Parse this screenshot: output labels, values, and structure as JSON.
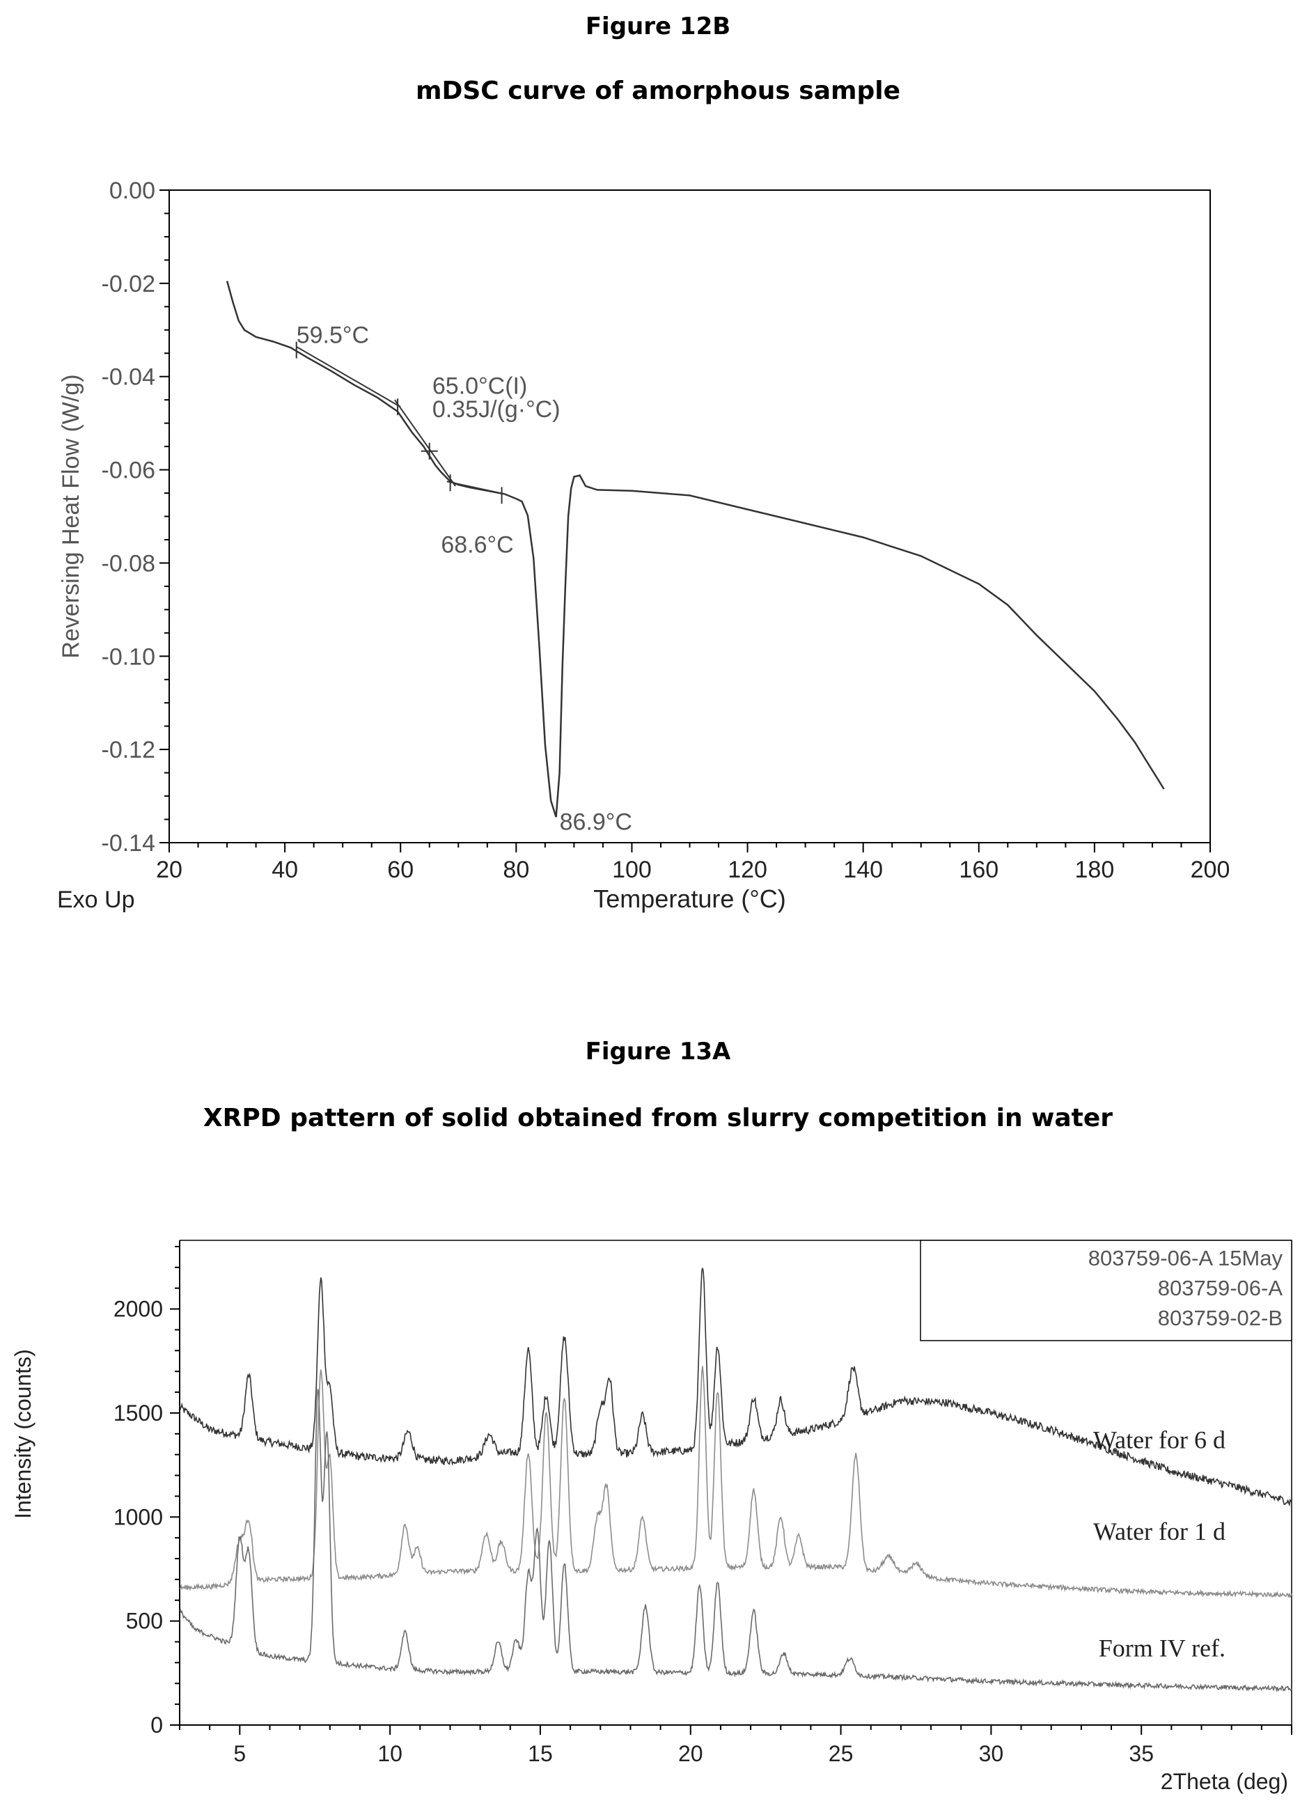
{
  "figures": [
    {
      "number": "Figure 12B",
      "caption": "mDSC curve of amorphous sample"
    },
    {
      "number": "Figure 13A",
      "caption": "XRPD pattern of solid obtained from slurry competition in water"
    }
  ],
  "colors": {
    "frame": "#000000",
    "text_gray": "#555555",
    "trace_dark": "#333333",
    "trace_mid": "#6a6a6a",
    "trace_light": "#8c8c8c"
  },
  "chart_data": [
    {
      "type": "line",
      "xlabel": "Temperature (°C)",
      "ylabel": "Reversing Heat Flow (W/g)",
      "corner_label": "Exo Up",
      "xlim": [
        20,
        200
      ],
      "ylim": [
        -0.14,
        0.0
      ],
      "xticks": [
        20,
        40,
        60,
        80,
        100,
        120,
        140,
        160,
        180,
        200
      ],
      "yticks": [
        0.0,
        -0.02,
        -0.04,
        -0.06,
        -0.08,
        -0.1,
        -0.12,
        -0.14
      ],
      "ytick_labels": [
        "0.00",
        "-0.02",
        "-0.04",
        "-0.06",
        "-0.08",
        "-0.10",
        "-0.12",
        "-0.14"
      ],
      "series": [
        {
          "x": [
            30,
            31,
            32,
            33,
            35,
            38,
            41,
            44,
            48,
            52,
            56,
            59.5,
            62,
            64,
            65,
            66,
            67,
            68.6,
            70,
            72,
            75,
            78,
            80,
            81,
            82,
            83,
            84,
            85,
            86,
            86.9,
            87.5,
            88,
            88.5,
            89,
            89.5,
            90,
            91,
            92,
            94,
            100,
            110,
            120,
            130,
            140,
            150,
            160,
            165,
            170,
            175,
            180,
            184,
            187,
            189,
            191,
            192
          ],
          "y": [
            -0.0195,
            -0.024,
            -0.028,
            -0.03,
            -0.0315,
            -0.0325,
            -0.0338,
            -0.036,
            -0.0388,
            -0.0418,
            -0.0445,
            -0.0475,
            -0.052,
            -0.055,
            -0.057,
            -0.059,
            -0.0605,
            -0.0625,
            -0.0632,
            -0.0638,
            -0.0645,
            -0.0652,
            -0.0662,
            -0.0668,
            -0.0698,
            -0.079,
            -0.098,
            -0.119,
            -0.131,
            -0.1345,
            -0.125,
            -0.102,
            -0.085,
            -0.07,
            -0.064,
            -0.0615,
            -0.0612,
            -0.0635,
            -0.0643,
            -0.0645,
            -0.0655,
            -0.0685,
            -0.0715,
            -0.0745,
            -0.0785,
            -0.0845,
            -0.089,
            -0.0955,
            -0.1015,
            -0.1075,
            -0.1135,
            -0.1185,
            -0.1225,
            -0.1265,
            -0.1285
          ]
        }
      ],
      "annotations": [
        {
          "text": "59.5°C",
          "x": 42,
          "y": -0.0328
        },
        {
          "text": "65.0°C(I)",
          "x": 65.5,
          "y": -0.0437
        },
        {
          "text": "0.35J/(g·°C)",
          "x": 65.5,
          "y": -0.0487
        },
        {
          "text": "68.6°C",
          "x": 67,
          "y": -0.0778
        },
        {
          "text": "86.9°C",
          "x": 87.5,
          "y": -0.1372
        }
      ]
    },
    {
      "type": "line",
      "xlabel": "2Theta (deg)",
      "ylabel": "Intensity (counts)",
      "xlim": [
        3,
        40
      ],
      "ylim": [
        0,
        2330
      ],
      "xticks": [
        5,
        10,
        15,
        20,
        25,
        30,
        35
      ],
      "yticks": [
        0,
        500,
        1000,
        1500,
        2000
      ],
      "legend": {
        "position": "top-right",
        "entries": [
          "803759-06-A 15May",
          "803759-06-A",
          "803759-02-B"
        ]
      },
      "series": [
        {
          "name": "803759-06-A 15May",
          "label": "Water for 6 d",
          "baseline": [
            [
              3,
              1530
            ],
            [
              4,
              1420
            ],
            [
              6,
              1360
            ],
            [
              9,
              1290
            ],
            [
              12,
              1270
            ],
            [
              14,
              1310
            ],
            [
              17,
              1300
            ],
            [
              20,
              1320
            ],
            [
              22,
              1370
            ],
            [
              24,
              1420
            ],
            [
              25.5,
              1480
            ],
            [
              27,
              1560
            ],
            [
              28.5,
              1550
            ],
            [
              30,
              1500
            ],
            [
              32,
              1420
            ],
            [
              34,
              1320
            ],
            [
              36,
              1220
            ],
            [
              38,
              1150
            ],
            [
              40,
              1070
            ]
          ],
          "peaks": [
            [
              5.3,
              300,
              0.12
            ],
            [
              7.7,
              820,
              0.11
            ],
            [
              8.0,
              300,
              0.1
            ],
            [
              10.6,
              130,
              0.14
            ],
            [
              13.3,
              100,
              0.15
            ],
            [
              14.6,
              500,
              0.12
            ],
            [
              15.2,
              280,
              0.12
            ],
            [
              15.8,
              560,
              0.13
            ],
            [
              17.0,
              220,
              0.12
            ],
            [
              17.3,
              360,
              0.12
            ],
            [
              18.4,
              180,
              0.12
            ],
            [
              20.4,
              860,
              0.11
            ],
            [
              20.9,
              480,
              0.11
            ],
            [
              22.1,
              200,
              0.12
            ],
            [
              23.0,
              170,
              0.12
            ],
            [
              25.4,
              240,
              0.15
            ]
          ]
        },
        {
          "name": "803759-06-A",
          "label": "Water for 1 d",
          "baseline": [
            [
              3,
              660
            ],
            [
              4,
              665
            ],
            [
              6,
              700
            ],
            [
              9,
              710
            ],
            [
              12,
              740
            ],
            [
              16,
              740
            ],
            [
              19,
              750
            ],
            [
              22,
              760
            ],
            [
              25,
              760
            ],
            [
              27,
              720
            ],
            [
              30,
              680
            ],
            [
              35,
              640
            ],
            [
              40,
              625
            ]
          ],
          "peaks": [
            [
              5.0,
              200,
              0.14
            ],
            [
              5.3,
              280,
              0.12
            ],
            [
              7.7,
              1000,
              0.11
            ],
            [
              8.0,
              560,
              0.1
            ],
            [
              10.5,
              240,
              0.12
            ],
            [
              10.9,
              120,
              0.12
            ],
            [
              13.2,
              180,
              0.13
            ],
            [
              13.7,
              140,
              0.13
            ],
            [
              14.6,
              570,
              0.12
            ],
            [
              15.2,
              760,
              0.12
            ],
            [
              15.8,
              830,
              0.12
            ],
            [
              16.9,
              250,
              0.12
            ],
            [
              17.2,
              400,
              0.12
            ],
            [
              18.4,
              250,
              0.12
            ],
            [
              20.4,
              960,
              0.11
            ],
            [
              20.9,
              850,
              0.11
            ],
            [
              22.1,
              370,
              0.12
            ],
            [
              23.0,
              240,
              0.12
            ],
            [
              23.6,
              150,
              0.12
            ],
            [
              25.5,
              550,
              0.13
            ],
            [
              26.6,
              80,
              0.2
            ],
            [
              27.5,
              60,
              0.2
            ]
          ]
        },
        {
          "name": "803759-02-B",
          "label": "Form IV ref.",
          "baseline": [
            [
              3,
              550
            ],
            [
              3.5,
              460
            ],
            [
              4.5,
              400
            ],
            [
              6,
              330
            ],
            [
              8,
              300
            ],
            [
              10,
              270
            ],
            [
              12,
              255
            ],
            [
              15,
              260
            ],
            [
              18,
              255
            ],
            [
              21,
              250
            ],
            [
              24,
              245
            ],
            [
              27,
              230
            ],
            [
              30,
              210
            ],
            [
              35,
              190
            ],
            [
              40,
              175
            ]
          ],
          "peaks": [
            [
              5.0,
              520,
              0.12
            ],
            [
              5.3,
              460,
              0.11
            ],
            [
              7.6,
              1300,
              0.1
            ],
            [
              7.9,
              1100,
              0.1
            ],
            [
              10.5,
              180,
              0.12
            ],
            [
              13.6,
              140,
              0.12
            ],
            [
              14.2,
              150,
              0.12
            ],
            [
              14.6,
              460,
              0.11
            ],
            [
              14.9,
              680,
              0.11
            ],
            [
              15.3,
              620,
              0.11
            ],
            [
              15.8,
              520,
              0.11
            ],
            [
              18.5,
              320,
              0.12
            ],
            [
              20.3,
              420,
              0.11
            ],
            [
              20.9,
              440,
              0.11
            ],
            [
              22.1,
              300,
              0.12
            ],
            [
              23.1,
              100,
              0.12
            ],
            [
              25.3,
              80,
              0.15
            ]
          ]
        }
      ]
    }
  ]
}
